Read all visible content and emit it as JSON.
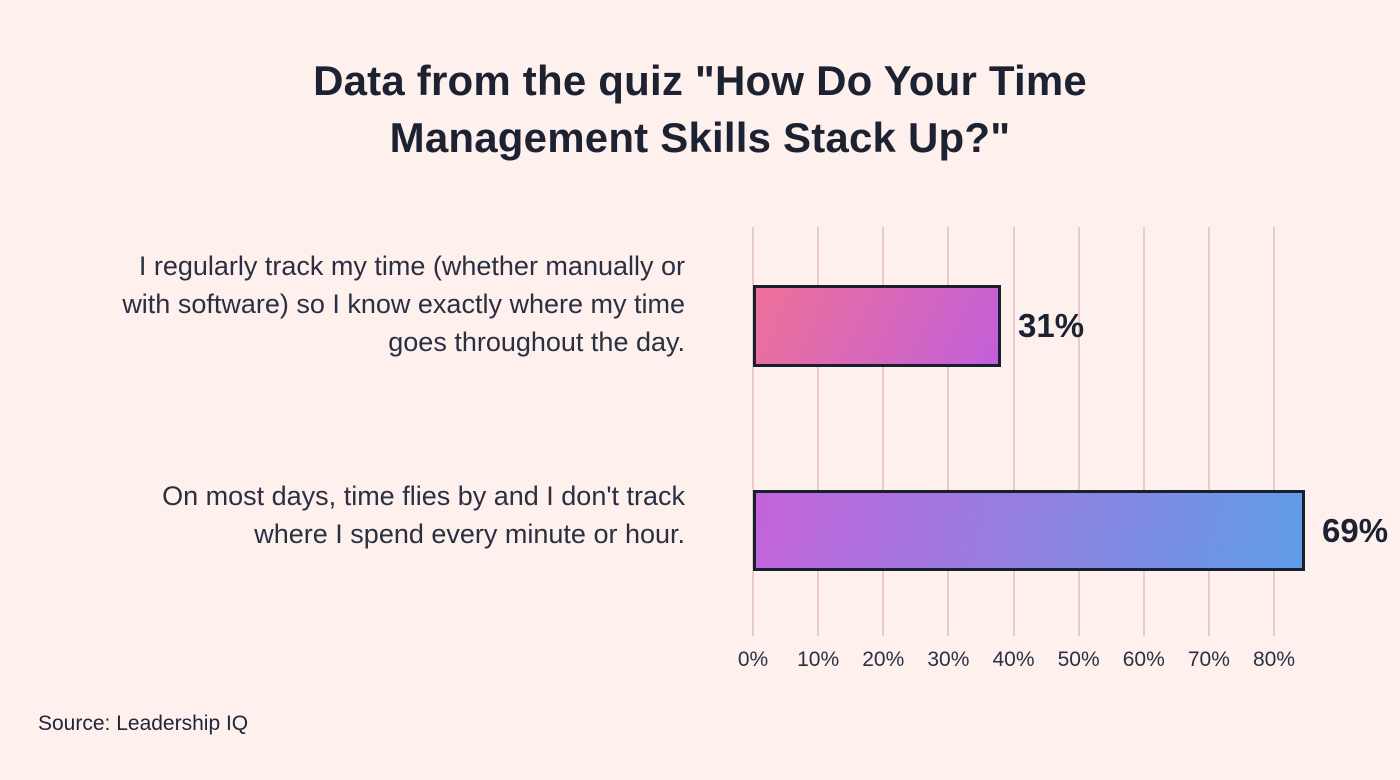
{
  "title": "Data from the quiz \"How Do Your Time Management Skills Stack Up?\"",
  "source": "Source: Leadership IQ",
  "colors": {
    "background": "#fdf0ed",
    "gridline": "#e8cbc8",
    "text_dark": "#1c2231",
    "bar_border": "#1a1f30",
    "bar1_gradient_from": "#ee7199",
    "bar1_gradient_to": "#c25fd9",
    "bar2_gradient_from": "#c463d9",
    "bar2_gradient_to": "#5f9de9"
  },
  "chart_data": {
    "type": "bar",
    "orientation": "horizontal",
    "title": "Data from the quiz \"How Do Your Time Management Skills Stack Up?\"",
    "categories": [
      "I regularly track my time (whether manually or with software) so I know exactly where my time goes throughout the day.",
      "On most days, time flies by and I don't track where I spend every minute or hour."
    ],
    "values": [
      31,
      69
    ],
    "value_labels": [
      "31%",
      "69%"
    ],
    "xlim": [
      0,
      80
    ],
    "x_ticks": [
      "0%",
      "10%",
      "20%",
      "30%",
      "40%",
      "50%",
      "60%",
      "70%",
      "80%"
    ],
    "grid": true,
    "legend": false,
    "bar_gradients": [
      {
        "angle": "115deg",
        "from": "#ee7199",
        "to": "#c25fd9"
      },
      {
        "angle": "105deg",
        "from": "#c463d9",
        "to": "#5f9de9"
      }
    ],
    "source": "Source: Leadership IQ"
  }
}
